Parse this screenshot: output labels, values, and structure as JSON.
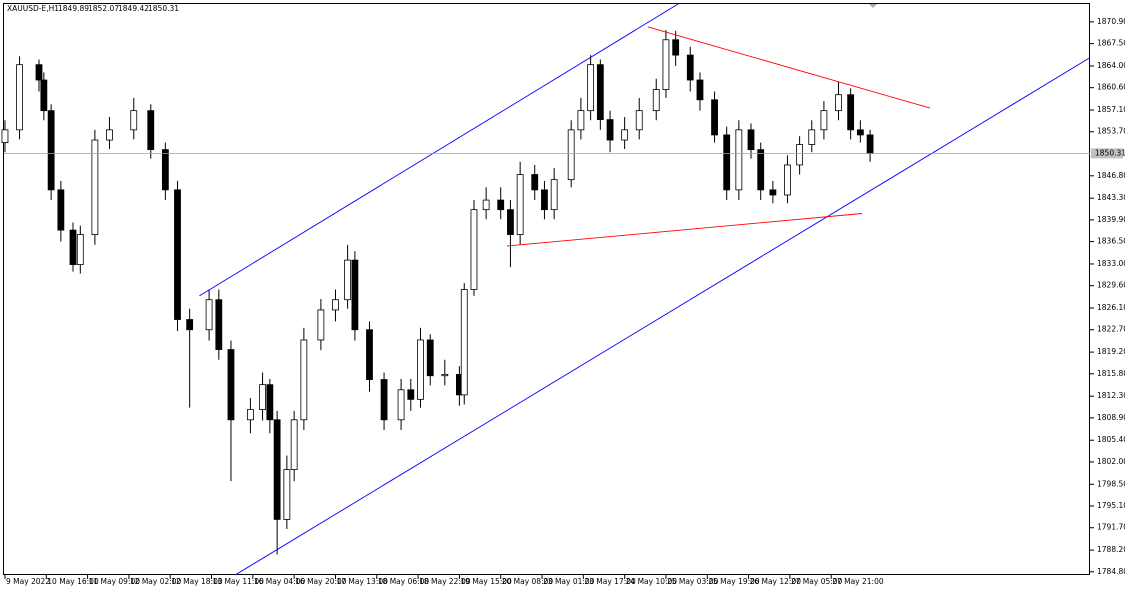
{
  "chart_data": {
    "type": "candlestick",
    "title": "XAUUSD-E,H1",
    "header_values": [
      1849.89,
      1852.07,
      1849.42,
      1850.31
    ],
    "current_price": 1850.31,
    "up_color": "#ffffff",
    "down_color": "#000000",
    "x": [
      0,
      6,
      14,
      16,
      19,
      23,
      28,
      31,
      37,
      43,
      53,
      60,
      66,
      71,
      76,
      84,
      88,
      93,
      101,
      106,
      109,
      112,
      116,
      119,
      123,
      130,
      136,
      141,
      144,
      150,
      156,
      163,
      167,
      171,
      175,
      181,
      187,
      189,
      193,
      198,
      204,
      208,
      212,
      218,
      222,
      226,
      233,
      237,
      241,
      245,
      249,
      255,
      261,
      268,
      272,
      276,
      282,
      286,
      292,
      297,
      302,
      307,
      311,
      316,
      322,
      327,
      332,
      337,
      343,
      348,
      352,
      356
    ],
    "open": [
      1852,
      1854,
      1864.2,
      1861.8,
      1857,
      1844.6,
      1838.3,
      1832.9,
      1837.6,
      1852.4,
      1854,
      1857,
      1850.9,
      1844.6,
      1824.3,
      1822.7,
      1827.4,
      1819.6,
      1808.6,
      1810.2,
      1814.1,
      1808.6,
      1793,
      1800.8,
      1808.6,
      1821.1,
      1825.8,
      1827.4,
      1833.6,
      1822.7,
      1814.9,
      1808.6,
      1813.3,
      1811.8,
      1821.1,
      1815.5,
      1815.7,
      1812.5,
      1829,
      1841.5,
      1843,
      1841.5,
      1837.6,
      1847,
      1844.6,
      1841.5,
      1846.2,
      1854,
      1857,
      1864.2,
      1855.6,
      1852.4,
      1854,
      1857,
      1860.3,
      1868.1,
      1865.7,
      1861.8,
      1858.7,
      1853.2,
      1844.6,
      1854,
      1850.9,
      1844.6,
      1843.8,
      1848.5,
      1851.7,
      1854,
      1857,
      1859.5,
      1854,
      1853.2
    ],
    "high": [
      1855.5,
      1865.5,
      1865,
      1863,
      1858,
      1846,
      1839.5,
      1839,
      1854,
      1856,
      1859,
      1858,
      1852,
      1846,
      1826,
      1829,
      1829,
      1821,
      1812,
      1816,
      1815,
      1810,
      1803,
      1810,
      1823,
      1827.5,
      1829,
      1836,
      1835,
      1824,
      1816,
      1815,
      1815,
      1823,
      1822,
      1818,
      1817,
      1830,
      1843,
      1845,
      1845,
      1843,
      1849,
      1848.5,
      1846,
      1848,
      1855.5,
      1859,
      1865.7,
      1865,
      1857,
      1856,
      1859,
      1862,
      1869.6,
      1869.5,
      1867,
      1863,
      1860,
      1854.5,
      1855.5,
      1855,
      1852,
      1846,
      1850,
      1853,
      1855.5,
      1858.5,
      1861.5,
      1860.5,
      1855.5,
      1854
    ],
    "low": [
      1850.5,
      1852.5,
      1860,
      1855.5,
      1843,
      1836.5,
      1831.8,
      1831.5,
      1836,
      1851,
      1852.5,
      1849.5,
      1843,
      1822.5,
      1810.5,
      1821,
      1818,
      1799,
      1806.5,
      1808.5,
      1806.5,
      1787.5,
      1791.5,
      1799,
      1807,
      1819.5,
      1824,
      1826,
      1821,
      1813,
      1807,
      1807,
      1810,
      1810.5,
      1814,
      1814,
      1810.8,
      1811,
      1828,
      1840,
      1840,
      1832.5,
      1836,
      1843,
      1840,
      1840,
      1845,
      1852.5,
      1855.5,
      1854,
      1850.5,
      1851,
      1852.5,
      1855.5,
      1859,
      1864,
      1860,
      1857,
      1852,
      1843,
      1843,
      1849.5,
      1843,
      1842.5,
      1842.5,
      1847,
      1850.5,
      1852.5,
      1855.5,
      1852.5,
      1852,
      1849
    ],
    "close": [
      1854,
      1864.2,
      1861.8,
      1857,
      1844.6,
      1838.3,
      1832.9,
      1837.6,
      1852.4,
      1854,
      1857,
      1850.9,
      1844.6,
      1824.3,
      1822.7,
      1827.4,
      1819.6,
      1808.6,
      1810.2,
      1814.1,
      1808.6,
      1793,
      1800.8,
      1808.6,
      1821.1,
      1825.8,
      1827.4,
      1833.6,
      1822.7,
      1814.9,
      1808.6,
      1813.3,
      1811.8,
      1821.1,
      1815.5,
      1815.7,
      1812.5,
      1829,
      1841.5,
      1843,
      1841.5,
      1837.6,
      1847,
      1844.6,
      1841.5,
      1846.2,
      1854,
      1857,
      1864.2,
      1855.6,
      1852.4,
      1854,
      1857,
      1860.3,
      1868.1,
      1865.7,
      1861.8,
      1858.7,
      1853.2,
      1844.6,
      1854,
      1850.9,
      1844.6,
      1843.8,
      1848.5,
      1851.7,
      1854,
      1857,
      1859.5,
      1854,
      1853.2,
      1850.3
    ],
    "xlim": [
      -0.4,
      446.5
    ],
    "ylim": [
      1784.3,
      1873.7
    ],
    "yticks": [
      {
        "value": 1870.9,
        "label": "1870.90"
      },
      {
        "value": 1867.5,
        "label": "1867.50"
      },
      {
        "value": 1864,
        "label": "1864.00"
      },
      {
        "value": 1860.6,
        "label": "1860.60"
      },
      {
        "value": 1857.1,
        "label": "1857.10"
      },
      {
        "value": 1853.7,
        "label": "1853.70"
      },
      {
        "value": 1846.8,
        "label": "1846.80"
      },
      {
        "value": 1843.3,
        "label": "1843.30"
      },
      {
        "value": 1839.9,
        "label": "1839.90"
      },
      {
        "value": 1836.5,
        "label": "1836.50"
      },
      {
        "value": 1833,
        "label": "1833.00"
      },
      {
        "value": 1829.6,
        "label": "1829.60"
      },
      {
        "value": 1826.1,
        "label": "1826.10"
      },
      {
        "value": 1822.7,
        "label": "1822.70"
      },
      {
        "value": 1819.2,
        "label": "1819.20"
      },
      {
        "value": 1815.8,
        "label": "1815.80"
      },
      {
        "value": 1812.3,
        "label": "1812.30"
      },
      {
        "value": 1808.9,
        "label": "1808.90"
      },
      {
        "value": 1805.4,
        "label": "1805.40"
      },
      {
        "value": 1802,
        "label": "1802.00"
      },
      {
        "value": 1798.5,
        "label": "1798.50"
      },
      {
        "value": 1795.1,
        "label": "1795.10"
      },
      {
        "value": 1791.7,
        "label": "1791.70"
      },
      {
        "value": 1788.2,
        "label": "1788.20"
      },
      {
        "value": 1784.8,
        "label": "1784.80"
      }
    ],
    "xticks": [
      {
        "value": 0,
        "label": "9 May 2022"
      },
      {
        "value": 17,
        "label": "10 May 16:00"
      },
      {
        "value": 34,
        "label": "11 May 09:00"
      },
      {
        "value": 51,
        "label": "12 May 02:00"
      },
      {
        "value": 68,
        "label": "12 May 18:00"
      },
      {
        "value": 85,
        "label": "13 May 11:00"
      },
      {
        "value": 102,
        "label": "16 May 04:00"
      },
      {
        "value": 119,
        "label": "16 May 20:00"
      },
      {
        "value": 136,
        "label": "17 May 13:00"
      },
      {
        "value": 153,
        "label": "18 May 06:00"
      },
      {
        "value": 170,
        "label": "18 May 22:00"
      },
      {
        "value": 187,
        "label": "19 May 15:00"
      },
      {
        "value": 204,
        "label": "20 May 08:00"
      },
      {
        "value": 221,
        "label": "23 May 01:00"
      },
      {
        "value": 238,
        "label": "23 May 17:00"
      },
      {
        "value": 255,
        "label": "24 May 10:00"
      },
      {
        "value": 272,
        "label": "25 May 03:00"
      },
      {
        "value": 289,
        "label": "25 May 19:00"
      },
      {
        "value": 306,
        "label": "26 May 12:00"
      },
      {
        "value": 323,
        "label": "27 May 05:00"
      },
      {
        "value": 340,
        "label": "27 May 21:00"
      }
    ],
    "lines": [
      {
        "color": "#0000ff",
        "x": [
          80,
          277
        ],
        "y": [
          1828.0,
          1873.7
        ]
      },
      {
        "color": "#0000ff",
        "x": [
          94.7,
          446.5
        ],
        "y": [
          1784.3,
          1865.3
        ]
      },
      {
        "color": "#ff0000",
        "x": [
          264.6,
          380.7
        ],
        "y": [
          1870.1,
          1857.4
        ]
      },
      {
        "color": "#ff0000",
        "x": [
          206.6,
          352.7
        ],
        "y": [
          1835.8,
          1840.9
        ]
      }
    ]
  }
}
